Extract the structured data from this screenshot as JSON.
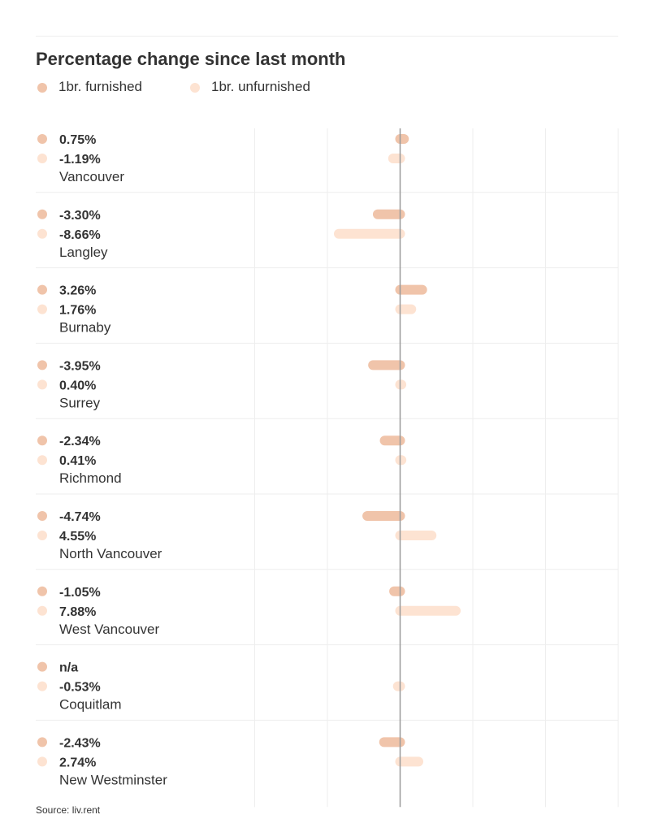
{
  "chart_data": {
    "type": "bar",
    "orientation": "horizontal",
    "title": "Percentage change since last month",
    "series": [
      {
        "name": "1br. furnished",
        "color": "#f0c4aa",
        "values": [
          0.75,
          -3.3,
          3.26,
          -3.95,
          -2.34,
          -4.74,
          -1.05,
          null,
          -2.43
        ],
        "labels": [
          "0.75%",
          "-3.30%",
          "3.26%",
          "-3.95%",
          "-2.34%",
          "-4.74%",
          "-1.05%",
          "n/a",
          "-2.43%"
        ]
      },
      {
        "name": "1br. unfurnished",
        "color": "#fde3d2",
        "values": [
          -1.19,
          -8.66,
          1.76,
          0.4,
          0.41,
          4.55,
          7.88,
          -0.53,
          2.74
        ],
        "labels": [
          "-1.19%",
          "-8.66%",
          "1.76%",
          "0.40%",
          "0.41%",
          "4.55%",
          "7.88%",
          "-0.53%",
          "2.74%"
        ]
      }
    ],
    "categories": [
      "Vancouver",
      "Langley",
      "Burnaby",
      "Surrey",
      "Richmond",
      "North Vancouver",
      "West Vancouver",
      "Coquitlam",
      "New Westminster"
    ],
    "xlim": [
      -30,
      30
    ],
    "grid": true,
    "legend": "top-left"
  },
  "source": "Source: liv.rent",
  "colors": {
    "gridline": "#eeeeee",
    "zero_line": "#999999",
    "text": "#333333"
  }
}
